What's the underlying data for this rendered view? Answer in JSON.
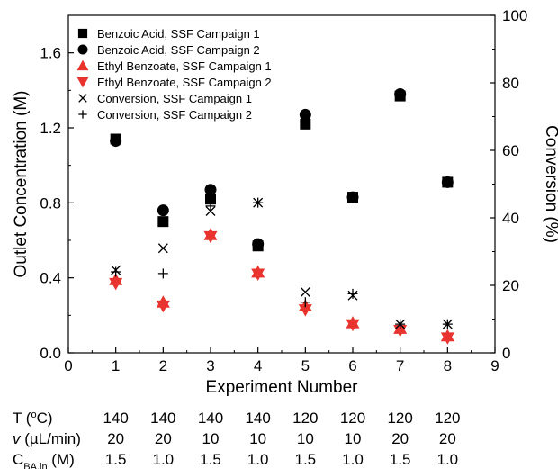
{
  "chart_data": {
    "type": "scatter",
    "xlabel": "Experiment Number",
    "ylabel": "Outlet Concentration (M)",
    "y2label": "Conversion (%)",
    "xlim": [
      0,
      9
    ],
    "ylim": [
      0.0,
      1.8
    ],
    "y2lim": [
      0,
      100
    ],
    "x_ticks": [
      0,
      1,
      2,
      3,
      4,
      5,
      6,
      7,
      8,
      9
    ],
    "y_ticks": [
      0.0,
      0.4,
      0.8,
      1.2,
      1.6
    ],
    "y2_ticks": [
      0,
      20,
      40,
      60,
      80,
      100
    ],
    "legend_position": "top-left",
    "grid": false,
    "series": [
      {
        "name": "Benzoic Acid, SSF Campaign 1",
        "marker": "square",
        "color": "#000000",
        "axis": "left",
        "x": [
          1,
          2,
          3,
          4,
          5,
          6,
          7,
          8
        ],
        "y": [
          1.14,
          0.7,
          0.82,
          0.57,
          1.22,
          0.83,
          1.37,
          0.91
        ]
      },
      {
        "name": "Benzoic Acid, SSF Campaign 2",
        "marker": "circle",
        "color": "#000000",
        "axis": "left",
        "x": [
          1,
          2,
          3,
          4,
          5,
          6,
          7,
          8
        ],
        "y": [
          1.13,
          0.76,
          0.87,
          0.58,
          1.27,
          0.83,
          1.38,
          0.91
        ]
      },
      {
        "name": "Ethyl Benzoate, SSF Campaign 1",
        "marker": "triangle-up",
        "color": "#e8332e",
        "axis": "left",
        "x": [
          1,
          2,
          3,
          4,
          5,
          6,
          7,
          8
        ],
        "y": [
          0.39,
          0.27,
          0.63,
          0.43,
          0.25,
          0.16,
          0.13,
          0.09
        ]
      },
      {
        "name": "Ethyl Benzoate, SSF Campaign 2",
        "marker": "triangle-down",
        "color": "#e8332e",
        "axis": "left",
        "x": [
          1,
          2,
          3,
          4,
          5,
          6,
          7,
          8
        ],
        "y": [
          0.37,
          0.25,
          0.62,
          0.42,
          0.23,
          0.15,
          0.12,
          0.08
        ]
      },
      {
        "name": "Conversion, SSF Campaign 1",
        "marker": "x",
        "color": "#000000",
        "axis": "right",
        "x": [
          1,
          2,
          3,
          4,
          5,
          6,
          7,
          8
        ],
        "y": [
          24.5,
          31.0,
          42.0,
          44.5,
          18.0,
          17.0,
          8.5,
          8.5
        ]
      },
      {
        "name": "Conversion, SSF Campaign 2",
        "marker": "plus",
        "color": "#000000",
        "axis": "right",
        "x": [
          1,
          2,
          3,
          4,
          5,
          6,
          7,
          8
        ],
        "y": [
          24.0,
          23.5,
          43.5,
          44.5,
          15.0,
          17.5,
          8.5,
          8.5
        ]
      }
    ]
  },
  "conditions": {
    "rows": [
      {
        "label_main": "T (",
        "label_sup": "o",
        "label_end": "C)",
        "values": [
          "140",
          "140",
          "140",
          "140",
          "120",
          "120",
          "120",
          "120"
        ]
      },
      {
        "label_italic": "v",
        "label_end": " (µL/min)",
        "values": [
          "20",
          "20",
          "10",
          "10",
          "10",
          "10",
          "20",
          "20"
        ]
      },
      {
        "label_main": "C",
        "label_sub": "BA,in",
        "label_end": " (M)",
        "values": [
          "1.5",
          "1.0",
          "1.5",
          "1.0",
          "1.5",
          "1.0",
          "1.5",
          "1.0"
        ]
      }
    ]
  }
}
